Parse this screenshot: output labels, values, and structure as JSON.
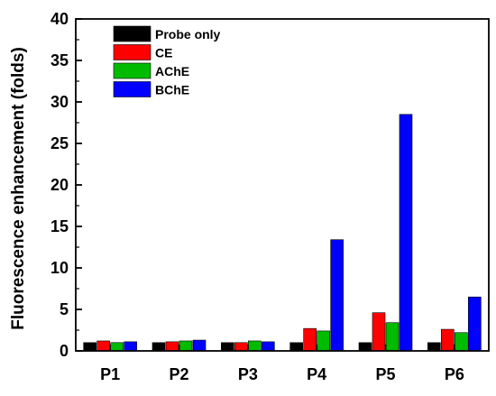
{
  "chart_data": {
    "type": "bar",
    "title": "",
    "xlabel": "",
    "ylabel": "Fluorescence enhancement (folds)",
    "ylim": [
      0,
      40
    ],
    "yticks": [
      0,
      5,
      10,
      15,
      20,
      25,
      30,
      35,
      40
    ],
    "categories": [
      "P1",
      "P2",
      "P3",
      "P4",
      "P5",
      "P6"
    ],
    "series": [
      {
        "name": "Probe only",
        "color": "#000000",
        "values": [
          1.0,
          1.0,
          1.0,
          1.0,
          1.0,
          1.0
        ]
      },
      {
        "name": "CE",
        "color": "#ff0000",
        "values": [
          1.2,
          1.1,
          1.0,
          2.7,
          4.6,
          2.6
        ]
      },
      {
        "name": "AChE",
        "color": "#00bb00",
        "values": [
          1.0,
          1.2,
          1.2,
          2.4,
          3.4,
          2.2
        ]
      },
      {
        "name": "BChE",
        "color": "#0000ff",
        "values": [
          1.1,
          1.3,
          1.1,
          13.4,
          28.5,
          6.5
        ]
      }
    ],
    "legend_position": "top-left",
    "grid": false
  }
}
